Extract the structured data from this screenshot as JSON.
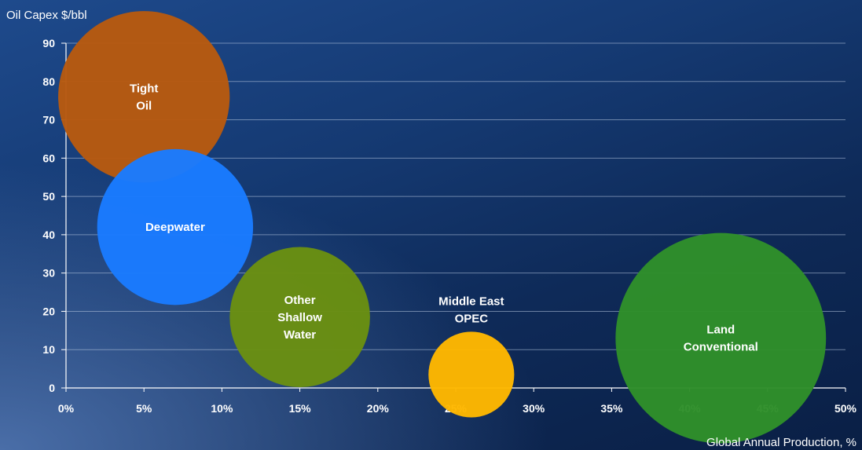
{
  "chart_data": {
    "type": "scatter",
    "variant": "bubble",
    "ylabel": "Oil Capex $/bbl",
    "xlabel": "Global Annual Production, %",
    "xlim": [
      0,
      50
    ],
    "ylim": [
      0,
      90
    ],
    "x_ticks": [
      "0%",
      "5%",
      "10%",
      "15%",
      "20%",
      "25%",
      "30%",
      "35%",
      "40%",
      "45%",
      "50%"
    ],
    "y_ticks": [
      "0",
      "10",
      "20",
      "30",
      "40",
      "50",
      "60",
      "70",
      "80",
      "90"
    ],
    "grid": true,
    "points": [
      {
        "label": "Tight Oil",
        "x": 5,
        "y": 76,
        "size": 11,
        "color": "#b85a10",
        "label_pos": "inside"
      },
      {
        "label": "Deepwater",
        "x": 7,
        "y": 42,
        "size": 10,
        "color": "#1a7bff",
        "label_pos": "inside"
      },
      {
        "label": "Other Shallow Water",
        "x": 15,
        "y": 18.5,
        "size": 9,
        "color": "#6a8f12",
        "label_pos": "inside"
      },
      {
        "label": "Middle East OPEC",
        "x": 26,
        "y": 3.5,
        "size": 5.5,
        "color": "#ffb800",
        "label_pos": "above"
      },
      {
        "label": "Land Conventional",
        "x": 42,
        "y": 13,
        "size": 13.5,
        "color": "#2f8f2a",
        "label_pos": "inside"
      }
    ]
  }
}
